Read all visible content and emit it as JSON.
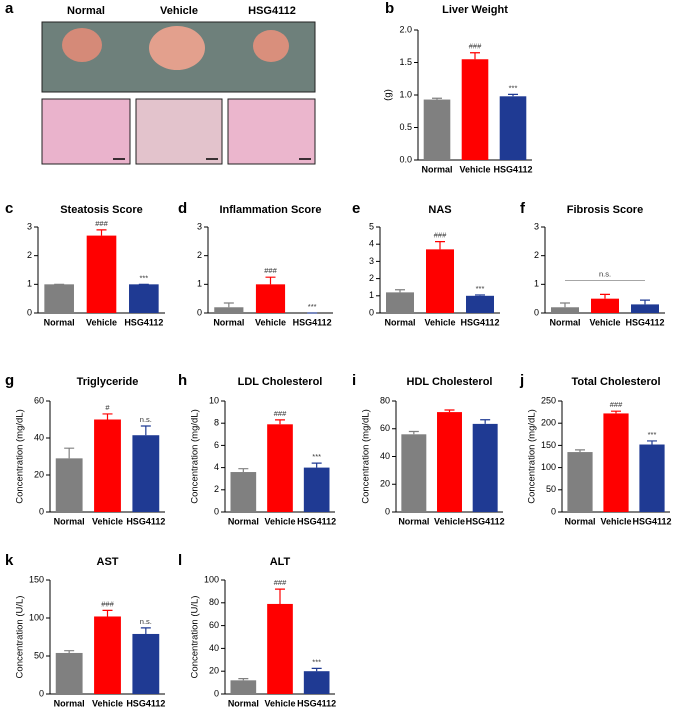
{
  "figure_a": {
    "label": "a",
    "columns": [
      "Normal",
      "Vehicle",
      "HSG4112"
    ]
  },
  "chart_data": [
    {
      "type": "bar",
      "panel": "b",
      "title": "Liver Weight",
      "ylabel": "(g)",
      "categories": [
        "Normal",
        "Vehicle",
        "HSG4112"
      ],
      "colors": [
        "#808080",
        "#ff0000",
        "#1f3a93"
      ],
      "values": [
        0.93,
        1.55,
        0.98
      ],
      "errors": [
        0.02,
        0.1,
        0.03
      ],
      "significance": [
        null,
        "###",
        "***"
      ],
      "ylim": [
        0,
        2
      ],
      "yticks": [
        {
          "value": 0,
          "label": "0.0"
        },
        {
          "value": 0.5,
          "label": "0.5"
        },
        {
          "value": 1,
          "label": "1.0"
        },
        {
          "value": 1.5,
          "label": "1.5"
        },
        {
          "value": 2,
          "label": "2.0"
        }
      ]
    },
    {
      "type": "bar",
      "panel": "c",
      "title": "Steatosis Score",
      "categories": [
        "Normal",
        "Vehicle",
        "HSG4112"
      ],
      "colors": [
        "#808080",
        "#ff0000",
        "#1f3a93"
      ],
      "values": [
        1,
        2.7,
        1
      ],
      "errors": [
        0,
        0.2,
        0
      ],
      "significance": [
        null,
        "###",
        "***"
      ],
      "ylim": [
        0,
        3
      ],
      "yticks": [
        0,
        1,
        2,
        3
      ]
    },
    {
      "type": "bar",
      "panel": "d",
      "title": "Inflammation Score",
      "categories": [
        "Normal",
        "Vehicle",
        "HSG4112"
      ],
      "colors": [
        "#808080",
        "#ff0000",
        "#1f3a93"
      ],
      "values": [
        0.2,
        1,
        0
      ],
      "errors": [
        0.15,
        0.25,
        0
      ],
      "significance": [
        null,
        "###",
        "***"
      ],
      "ylim": [
        0,
        3
      ],
      "yticks": [
        0,
        1,
        2,
        3
      ]
    },
    {
      "type": "bar",
      "panel": "e",
      "title": "NAS",
      "categories": [
        "Normal",
        "Vehicle",
        "HSG4112"
      ],
      "colors": [
        "#808080",
        "#ff0000",
        "#1f3a93"
      ],
      "values": [
        1.2,
        3.7,
        1
      ],
      "errors": [
        0.15,
        0.45,
        0.05
      ],
      "significance": [
        null,
        "###",
        "***"
      ],
      "ylim": [
        0,
        5
      ],
      "yticks": [
        0,
        1,
        2,
        3,
        4,
        5
      ]
    },
    {
      "type": "bar",
      "panel": "f",
      "title": "Fibrosis Score",
      "categories": [
        "Normal",
        "Vehicle",
        "HSG4112"
      ],
      "colors": [
        "#808080",
        "#ff0000",
        "#1f3a93"
      ],
      "values": [
        0.2,
        0.5,
        0.3
      ],
      "errors": [
        0.15,
        0.15,
        0.15
      ],
      "bracket_label": "n.s.",
      "ylim": [
        0,
        3
      ],
      "yticks": [
        0,
        1,
        2,
        3
      ]
    },
    {
      "type": "bar",
      "panel": "g",
      "title": "Triglyceride",
      "ylabel": "Concentration (mg/dL)",
      "categories": [
        "Normal",
        "Vehicle",
        "HSG4112"
      ],
      "colors": [
        "#808080",
        "#ff0000",
        "#1f3a93"
      ],
      "values": [
        29,
        50,
        41.5
      ],
      "errors": [
        5.5,
        3,
        5
      ],
      "significance": [
        null,
        "#",
        "n.s."
      ],
      "ylim": [
        0,
        60
      ],
      "yticks": [
        0,
        20,
        40,
        60
      ]
    },
    {
      "type": "bar",
      "panel": "h",
      "title": "LDL Cholesterol",
      "ylabel": "Concentration (mg/dL)",
      "categories": [
        "Normal",
        "Vehicle",
        "HSG4112"
      ],
      "colors": [
        "#808080",
        "#ff0000",
        "#1f3a93"
      ],
      "values": [
        3.6,
        7.9,
        4
      ],
      "errors": [
        0.3,
        0.4,
        0.4
      ],
      "significance": [
        null,
        "###",
        "***"
      ],
      "ylim": [
        0,
        10
      ],
      "yticks": [
        0,
        2,
        4,
        6,
        8,
        10
      ]
    },
    {
      "type": "bar",
      "panel": "i",
      "title": "HDL Cholesterol",
      "ylabel": "Concentration (mg/dL)",
      "categories": [
        "Normal",
        "Vehicle",
        "HSG4112"
      ],
      "colors": [
        "#808080",
        "#ff0000",
        "#1f3a93"
      ],
      "values": [
        56,
        72,
        63.5
      ],
      "errors": [
        2,
        1.5,
        3
      ],
      "ylim": [
        0,
        80
      ],
      "yticks": [
        0,
        20,
        40,
        60,
        80
      ]
    },
    {
      "type": "bar",
      "panel": "j",
      "title": "Total Cholesterol",
      "ylabel": "Concentration (mg/dL)",
      "categories": [
        "Normal",
        "Vehicle",
        "HSG4112"
      ],
      "colors": [
        "#808080",
        "#ff0000",
        "#1f3a93"
      ],
      "values": [
        135,
        222,
        152
      ],
      "errors": [
        5,
        5,
        8
      ],
      "significance": [
        null,
        "###",
        "***"
      ],
      "ylim": [
        0,
        250
      ],
      "yticks": [
        0,
        50,
        100,
        150,
        200,
        250
      ]
    },
    {
      "type": "bar",
      "panel": "k",
      "title": "AST",
      "ylabel": "Concentration (U/L)",
      "categories": [
        "Normal",
        "Vehicle",
        "HSG4112"
      ],
      "colors": [
        "#808080",
        "#ff0000",
        "#1f3a93"
      ],
      "values": [
        54,
        102,
        79
      ],
      "errors": [
        3,
        8,
        8
      ],
      "significance": [
        null,
        "###",
        "n.s."
      ],
      "ylim": [
        0,
        150
      ],
      "yticks": [
        0,
        50,
        100,
        150
      ]
    },
    {
      "type": "bar",
      "panel": "l",
      "title": "ALT",
      "ylabel": "Concentration (U/L)",
      "categories": [
        "Normal",
        "Vehicle",
        "HSG4112"
      ],
      "colors": [
        "#808080",
        "#ff0000",
        "#1f3a93"
      ],
      "values": [
        12,
        79,
        20
      ],
      "errors": [
        1.5,
        13,
        2.5
      ],
      "significance": [
        null,
        "###",
        "***"
      ],
      "ylim": [
        0,
        100
      ],
      "yticks": [
        0,
        20,
        40,
        60,
        80,
        100
      ]
    }
  ]
}
